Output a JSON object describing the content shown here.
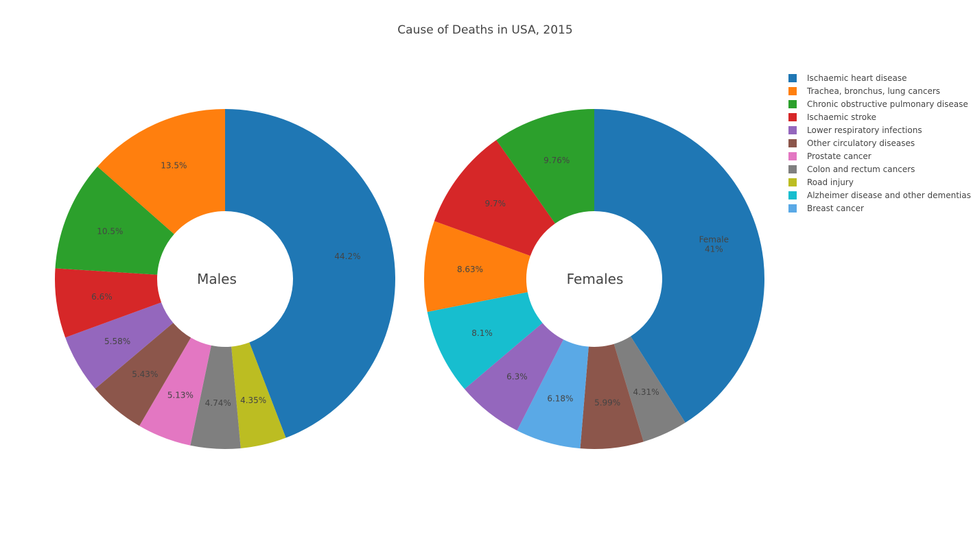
{
  "chart_data": {
    "type": "pie",
    "title": "Cause of Deaths in USA, 2015",
    "legend_position": "right",
    "legend": [
      {
        "name": "Ischaemic heart disease",
        "color": "#1f77b4"
      },
      {
        "name": "Trachea, bronchus, lung cancers",
        "color": "#ff7f0e"
      },
      {
        "name": "Chronic obstructive pulmonary disease",
        "color": "#2ca02c"
      },
      {
        "name": "Ischaemic stroke",
        "color": "#d62728"
      },
      {
        "name": "Lower respiratory infections",
        "color": "#9467bd"
      },
      {
        "name": "Other circulatory diseases",
        "color": "#8c564b"
      },
      {
        "name": "Prostate cancer",
        "color": "#e377c2"
      },
      {
        "name": "Colon and rectum cancers",
        "color": "#7f7f7f"
      },
      {
        "name": "Road injury",
        "color": "#bcbd22"
      },
      {
        "name": "Alzheimer disease and other dementias",
        "color": "#17becf"
      },
      {
        "name": "Breast cancer",
        "color": "#5aa9e6"
      }
    ],
    "pies": [
      {
        "name": "Males",
        "center_label": "Males",
        "slices": [
          {
            "category": "Ischaemic heart disease",
            "value": 44.2,
            "label": "44.2%"
          },
          {
            "category": "Road injury",
            "value": 4.35,
            "label": "4.35%"
          },
          {
            "category": "Colon and rectum cancers",
            "value": 4.74,
            "label": "4.74%"
          },
          {
            "category": "Prostate cancer",
            "value": 5.13,
            "label": "5.13%"
          },
          {
            "category": "Other circulatory diseases",
            "value": 5.43,
            "label": "5.43%"
          },
          {
            "category": "Lower respiratory infections",
            "value": 5.58,
            "label": "5.58%"
          },
          {
            "category": "Ischaemic stroke",
            "value": 6.6,
            "label": "6.6%"
          },
          {
            "category": "Chronic obstructive pulmonary disease",
            "value": 10.5,
            "label": "10.5%"
          },
          {
            "category": "Trachea, bronchus, lung cancers",
            "value": 13.5,
            "label": "13.5%"
          }
        ]
      },
      {
        "name": "Females",
        "center_label": "Females",
        "slices": [
          {
            "category": "Ischaemic heart disease",
            "value": 41,
            "label": "Female\n41%"
          },
          {
            "category": "Colon and rectum cancers",
            "value": 4.31,
            "label": "4.31%"
          },
          {
            "category": "Other circulatory diseases",
            "value": 5.99,
            "label": "5.99%"
          },
          {
            "category": "Breast cancer",
            "value": 6.18,
            "label": "6.18%"
          },
          {
            "category": "Lower respiratory infections",
            "value": 6.3,
            "label": "6.3%"
          },
          {
            "category": "Alzheimer disease and other dementias",
            "value": 8.1,
            "label": "8.1%"
          },
          {
            "category": "Trachea, bronchus, lung cancers",
            "value": 8.63,
            "label": "8.63%"
          },
          {
            "category": "Ischaemic stroke",
            "value": 9.7,
            "label": "9.7%"
          },
          {
            "category": "Chronic obstructive pulmonary disease",
            "value": 9.76,
            "label": "9.76%"
          }
        ]
      }
    ]
  }
}
